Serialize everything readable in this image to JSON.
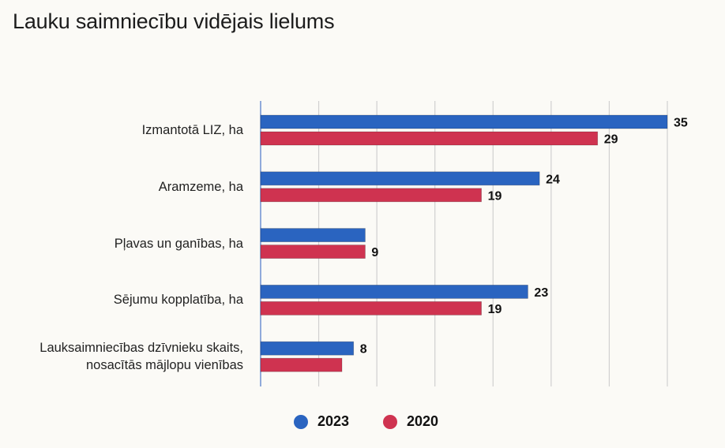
{
  "title": "Lauku saimniecību vidējais lielums",
  "colors": {
    "2023": "#2a64c0",
    "2020": "#cf3350",
    "grid": "#d0d0d0",
    "axis": "#6c8fd0"
  },
  "chart_data": {
    "type": "bar",
    "orientation": "horizontal",
    "title": "Lauku saimniecību vidējais lielums",
    "categories": [
      [
        "Izmantotā LIZ, ha"
      ],
      [
        "Aramzeme, ha"
      ],
      [
        "Pļavas un ganības, ha"
      ],
      [
        "Sējumu kopplatība, ha"
      ],
      [
        "Lauksaimniecības dzīvnieku skaits,",
        "nosacītās mājlopu vienības"
      ]
    ],
    "series": [
      {
        "name": "2023",
        "values": [
          35,
          24,
          9,
          23,
          8
        ],
        "labels": [
          "35",
          "24",
          "",
          "23",
          "8"
        ]
      },
      {
        "name": "2020",
        "values": [
          29,
          19,
          9,
          19,
          7
        ],
        "labels": [
          "29",
          "19",
          "9",
          "19",
          ""
        ]
      }
    ],
    "xlim": [
      0,
      35
    ],
    "grid": true,
    "legend_position": "bottom"
  }
}
